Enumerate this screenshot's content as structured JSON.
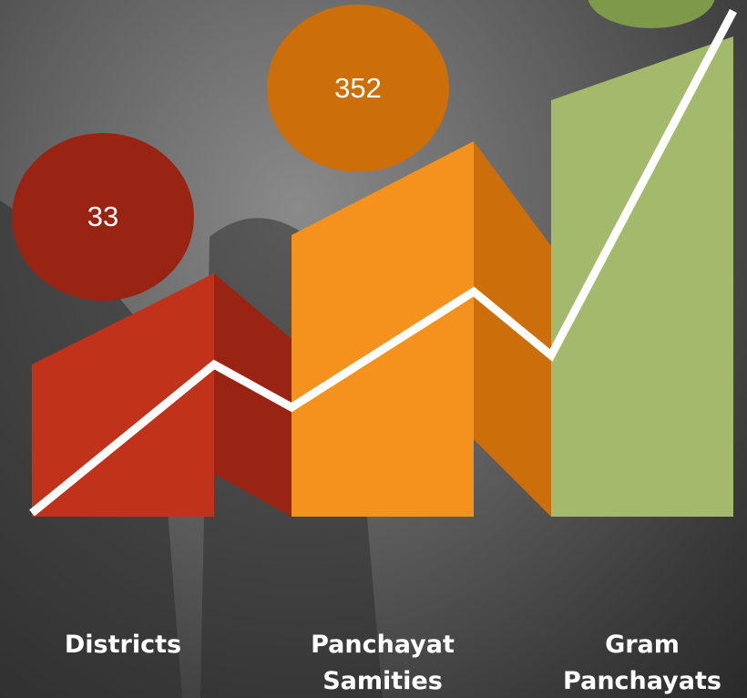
{
  "items": [
    {
      "label": "Districts",
      "value": "33"
    },
    {
      "label": "Panchayat Samities",
      "value": "352"
    },
    {
      "label": "Gram Panchayats"
    }
  ]
}
